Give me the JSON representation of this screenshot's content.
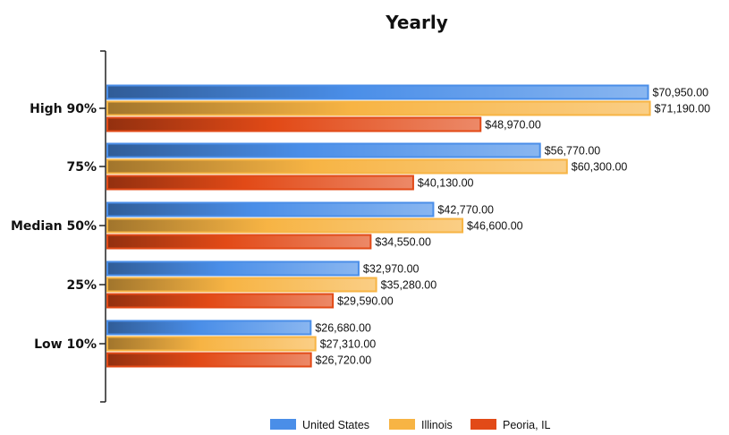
{
  "chart_data": {
    "type": "bar",
    "orientation": "horizontal",
    "title": "Yearly",
    "categories": [
      "High 90%",
      "75%",
      "Median 50%",
      "25%",
      "Low 10%"
    ],
    "series": [
      {
        "name": "United States",
        "color": "#4a8ee8",
        "values": [
          70950,
          56770,
          42770,
          32970,
          26680
        ],
        "labels": [
          "$70,950.00",
          "$56,770.00",
          "$42,770.00",
          "$32,970.00",
          "$26,680.00"
        ]
      },
      {
        "name": "Illinois",
        "color": "#f7b444",
        "values": [
          71190,
          60300,
          46600,
          35280,
          27310
        ],
        "labels": [
          "$71,190.00",
          "$60,300.00",
          "$46,600.00",
          "$35,280.00",
          "$27,310.00"
        ]
      },
      {
        "name": "Peoria, IL",
        "color": "#e24a17",
        "values": [
          48970,
          40130,
          34550,
          29590,
          26720
        ],
        "labels": [
          "$48,970.00",
          "$40,130.00",
          "$34,550.00",
          "$29,590.00",
          "$26,720.00"
        ]
      }
    ],
    "xlim": [
      0,
      73000
    ],
    "grid": false,
    "legend_position": "bottom"
  }
}
